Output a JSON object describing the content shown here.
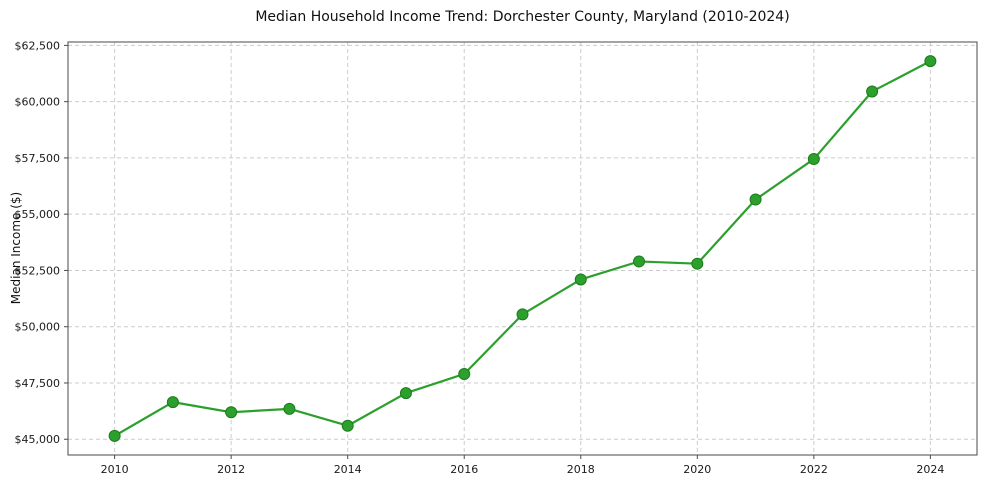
{
  "figure": {
    "title": "Median Household Income Trend: Dorchester County, Maryland (2010-2024)",
    "ylabel": "Median Income ($)"
  },
  "chart_data": {
    "type": "line",
    "title": "Median Household Income Trend: Dorchester County, Maryland (2010-2024)",
    "xlabel": "",
    "ylabel": "Median Income ($)",
    "x": [
      2010,
      2011,
      2012,
      2013,
      2014,
      2015,
      2016,
      2017,
      2018,
      2019,
      2020,
      2021,
      2022,
      2023,
      2024
    ],
    "values": [
      45150,
      46650,
      46200,
      46350,
      45600,
      47050,
      47900,
      50550,
      52100,
      52900,
      52800,
      55650,
      57450,
      60450,
      61800
    ],
    "series_name": "Median Household Income",
    "x_ticks": [
      2010,
      2012,
      2014,
      2016,
      2018,
      2020,
      2022,
      2024
    ],
    "y_ticks": [
      45000,
      47500,
      50000,
      52500,
      55000,
      57500,
      60000,
      62500
    ],
    "y_tick_labels": [
      "$45,000",
      "$47,500",
      "$50,000",
      "$52,500",
      "$55,000",
      "$57,500",
      "$60,000",
      "$62,500"
    ],
    "xlim": [
      2009.2,
      2024.8
    ],
    "ylim": [
      44300,
      62650
    ],
    "grid": true,
    "legend": "none",
    "colors": {
      "line": "#2ca02c",
      "marker": "#2ca02c",
      "marker_edge": "#1e7a1e",
      "grid": "#cccccc",
      "spine": "#4a4a4a",
      "tick_text": "#1a1a1a",
      "background": "#ffffff"
    }
  }
}
